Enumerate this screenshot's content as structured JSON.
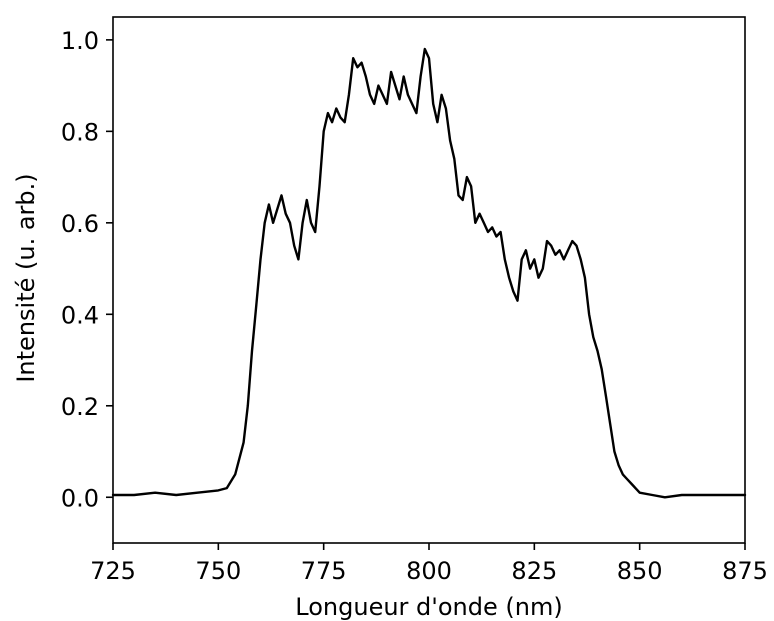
{
  "chart_data": {
    "type": "line",
    "title": "",
    "xlabel": "Longueur d'onde (nm)",
    "ylabel": "Intensité (u. arb.)",
    "xlim": [
      725,
      875
    ],
    "ylim": [
      -0.1,
      1.05
    ],
    "grid": false,
    "x_ticks": [
      725,
      750,
      775,
      800,
      825,
      850,
      875
    ],
    "x_tick_labels": [
      "725",
      "750",
      "775",
      "800",
      "825",
      "850",
      "875"
    ],
    "y_ticks": [
      0.0,
      0.2,
      0.4,
      0.6,
      0.8,
      1.0
    ],
    "y_tick_labels": [
      "0.0",
      "0.2",
      "0.4",
      "0.6",
      "0.8",
      "1.0"
    ],
    "line_color": "#000000",
    "series": [
      {
        "x": [
          725,
          730,
          735,
          740,
          745,
          750,
          752,
          754,
          756,
          757,
          758,
          759,
          760,
          761,
          762,
          763,
          764,
          765,
          766,
          767,
          768,
          769,
          770,
          771,
          772,
          773,
          774,
          775,
          776,
          777,
          778,
          779,
          780,
          781,
          782,
          783,
          784,
          785,
          786,
          787,
          788,
          789,
          790,
          791,
          792,
          793,
          794,
          795,
          796,
          797,
          798,
          799,
          800,
          801,
          802,
          803,
          804,
          805,
          806,
          807,
          808,
          809,
          810,
          811,
          812,
          813,
          814,
          815,
          816,
          817,
          818,
          819,
          820,
          821,
          822,
          823,
          824,
          825,
          826,
          827,
          828,
          829,
          830,
          831,
          832,
          833,
          834,
          835,
          836,
          837,
          838,
          839,
          840,
          841,
          842,
          843,
          844,
          845,
          846,
          847,
          848,
          850,
          853,
          856,
          860,
          865,
          870,
          875
        ],
        "y": [
          0.005,
          0.005,
          0.01,
          0.005,
          0.01,
          0.015,
          0.02,
          0.05,
          0.12,
          0.2,
          0.32,
          0.42,
          0.52,
          0.6,
          0.64,
          0.6,
          0.63,
          0.66,
          0.62,
          0.6,
          0.55,
          0.52,
          0.6,
          0.65,
          0.6,
          0.58,
          0.68,
          0.8,
          0.84,
          0.82,
          0.85,
          0.83,
          0.82,
          0.88,
          0.96,
          0.94,
          0.95,
          0.92,
          0.88,
          0.86,
          0.9,
          0.88,
          0.86,
          0.93,
          0.9,
          0.87,
          0.92,
          0.88,
          0.86,
          0.84,
          0.92,
          0.98,
          0.96,
          0.86,
          0.82,
          0.88,
          0.85,
          0.78,
          0.74,
          0.66,
          0.65,
          0.7,
          0.68,
          0.6,
          0.62,
          0.6,
          0.58,
          0.59,
          0.57,
          0.58,
          0.52,
          0.48,
          0.45,
          0.43,
          0.52,
          0.54,
          0.5,
          0.52,
          0.48,
          0.5,
          0.56,
          0.55,
          0.53,
          0.54,
          0.52,
          0.54,
          0.56,
          0.55,
          0.52,
          0.48,
          0.4,
          0.35,
          0.32,
          0.28,
          0.22,
          0.16,
          0.1,
          0.07,
          0.05,
          0.04,
          0.03,
          0.01,
          0.005,
          0.0,
          0.005,
          0.005,
          0.005,
          0.005
        ]
      }
    ]
  }
}
